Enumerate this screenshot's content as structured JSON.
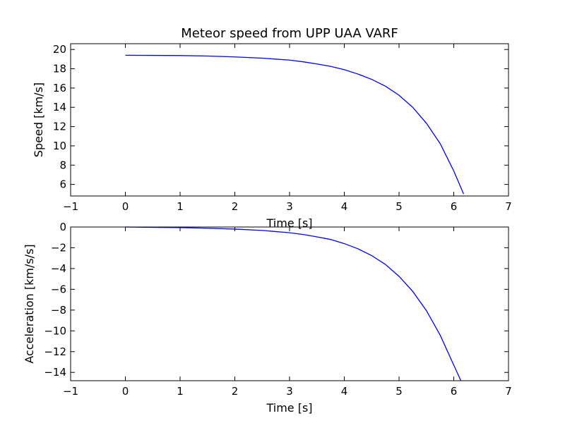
{
  "chart_data": [
    {
      "type": "line",
      "title": "Meteor speed from  UPP UAA VARF",
      "xlabel": "Time [s]",
      "ylabel": "Speed [km/s]",
      "xlim": [
        -1,
        7
      ],
      "ylim": [
        4.8,
        20.6
      ],
      "xticks": [
        -1,
        0,
        1,
        2,
        3,
        4,
        5,
        6,
        7
      ],
      "xtick_labels": [
        "−1",
        "0",
        "1",
        "2",
        "3",
        "4",
        "5",
        "6",
        "7"
      ],
      "yticks": [
        6,
        8,
        10,
        12,
        14,
        16,
        18,
        20
      ],
      "ytick_labels": [
        "6",
        "8",
        "10",
        "12",
        "14",
        "16",
        "18",
        "20"
      ],
      "grid": false,
      "series": [
        {
          "color": "#0000ff",
          "x": [
            0,
            0.5,
            1,
            1.5,
            2,
            2.5,
            3,
            3.25,
            3.5,
            3.75,
            4,
            4.25,
            4.5,
            4.75,
            5,
            5.25,
            5.5,
            5.75,
            6,
            6.18
          ],
          "y": [
            19.4,
            19.39,
            19.37,
            19.32,
            19.23,
            19.1,
            18.9,
            18.72,
            18.5,
            18.25,
            17.9,
            17.45,
            16.9,
            16.2,
            15.25,
            14.0,
            12.35,
            10.25,
            7.4,
            5.0
          ]
        }
      ]
    },
    {
      "type": "line",
      "title": "",
      "xlabel": "Time [s]",
      "ylabel": "Acceleration [km/s/s]",
      "xlim": [
        -1,
        7
      ],
      "ylim": [
        -14.8,
        0
      ],
      "xticks": [
        -1,
        0,
        1,
        2,
        3,
        4,
        5,
        6,
        7
      ],
      "xtick_labels": [
        "−1",
        "0",
        "1",
        "2",
        "3",
        "4",
        "5",
        "6",
        "7"
      ],
      "yticks": [
        0,
        -2,
        -4,
        -6,
        -8,
        -10,
        -12,
        -14
      ],
      "ytick_labels": [
        "0",
        "−2",
        "−4",
        "−6",
        "−8",
        "−10",
        "−12",
        "−14"
      ],
      "grid": false,
      "series": [
        {
          "color": "#0000ff",
          "x": [
            0,
            0.5,
            1,
            1.5,
            2,
            2.5,
            3,
            3.25,
            3.5,
            3.75,
            4,
            4.25,
            4.5,
            4.75,
            5,
            5.25,
            5.5,
            5.75,
            6,
            6.13
          ],
          "y": [
            0,
            -0.03,
            -0.06,
            -0.12,
            -0.2,
            -0.33,
            -0.55,
            -0.72,
            -0.95,
            -1.2,
            -1.6,
            -2.1,
            -2.75,
            -3.6,
            -4.75,
            -6.2,
            -8.05,
            -10.4,
            -13.3,
            -14.8
          ]
        }
      ]
    }
  ]
}
